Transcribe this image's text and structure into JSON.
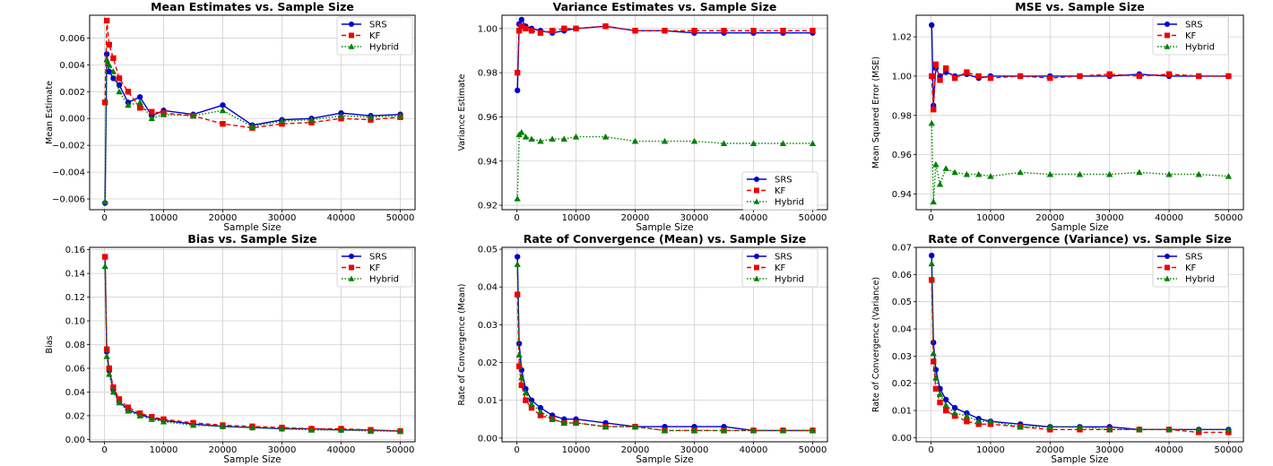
{
  "legend_labels": [
    "SRS",
    "KF",
    "Hybrid"
  ],
  "colors": {
    "SRS": "#0000cc",
    "KF": "#ee0000",
    "Hybrid": "#008000",
    "grid": "#d0d0d0"
  },
  "chart_data": [
    {
      "type": "line",
      "title": "Mean Estimates vs. Sample Size",
      "xlabel": "Sample Size",
      "ylabel": "Mean Estimate",
      "xlim": [
        -2500,
        52500
      ],
      "ylim": [
        -0.0068,
        0.0077
      ],
      "xticks": [
        0,
        10000,
        20000,
        30000,
        40000,
        50000
      ],
      "xtick_labels": [
        "0",
        "10000",
        "20000",
        "30000",
        "40000",
        "50000"
      ],
      "yticks": [
        -0.006,
        -0.004,
        -0.002,
        0.0,
        0.002,
        0.004,
        0.006
      ],
      "ytick_labels": [
        "−0.006",
        "−0.004",
        "−0.002",
        "0.000",
        "0.002",
        "0.004",
        "0.006"
      ],
      "grid": true,
      "legend": "top-right",
      "series": [
        {
          "name": "SRS",
          "x": [
            100,
            400,
            800,
            1500,
            2500,
            4000,
            6000,
            8000,
            10000,
            15000,
            20000,
            25000,
            30000,
            35000,
            40000,
            45000,
            50000
          ],
          "y": [
            -0.0063,
            0.0048,
            0.0035,
            0.003,
            0.0025,
            0.0012,
            0.0016,
            0.0002,
            0.0006,
            0.0003,
            0.001,
            -0.0005,
            -0.0001,
            0.0,
            0.0004,
            0.0002,
            0.0003
          ]
        },
        {
          "name": "KF",
          "x": [
            100,
            400,
            800,
            1500,
            2500,
            4000,
            6000,
            8000,
            10000,
            15000,
            20000,
            25000,
            30000,
            35000,
            40000,
            45000,
            50000
          ],
          "y": [
            0.0012,
            0.0073,
            0.0055,
            0.0045,
            0.003,
            0.002,
            0.0008,
            0.0005,
            0.0004,
            0.0002,
            -0.0004,
            -0.0007,
            -0.0004,
            -0.0003,
            0.0,
            -0.0001,
            0.0001
          ]
        },
        {
          "name": "Hybrid",
          "x": [
            100,
            400,
            800,
            1500,
            2500,
            4000,
            6000,
            8000,
            10000,
            15000,
            20000,
            25000,
            30000,
            35000,
            40000,
            45000,
            50000
          ],
          "y": [
            -0.0062,
            0.0044,
            0.004,
            0.0035,
            0.002,
            0.001,
            0.0012,
            0.0,
            0.0003,
            0.0002,
            0.0006,
            -0.0006,
            -0.0002,
            -0.0001,
            0.0002,
            0.0001,
            0.0002
          ]
        }
      ]
    },
    {
      "type": "line",
      "title": "Variance Estimates vs. Sample Size",
      "xlabel": "Sample Size",
      "ylabel": "Variance Estimate",
      "xlim": [
        -2500,
        52500
      ],
      "ylim": [
        0.918,
        1.006
      ],
      "xticks": [
        0,
        10000,
        20000,
        30000,
        40000,
        50000
      ],
      "xtick_labels": [
        "0",
        "10000",
        "20000",
        "30000",
        "40000",
        "50000"
      ],
      "yticks": [
        0.92,
        0.94,
        0.96,
        0.98,
        1.0
      ],
      "ytick_labels": [
        "0.92",
        "0.94",
        "0.96",
        "0.98",
        "1.00"
      ],
      "grid": true,
      "legend": "lower-right",
      "series": [
        {
          "name": "SRS",
          "x": [
            100,
            400,
            800,
            1500,
            2500,
            4000,
            6000,
            8000,
            10000,
            15000,
            20000,
            25000,
            30000,
            35000,
            40000,
            45000,
            50000
          ],
          "y": [
            0.972,
            1.002,
            1.004,
            1.001,
            1.0,
            0.999,
            0.998,
            0.999,
            1.0,
            1.001,
            0.999,
            0.999,
            0.998,
            0.998,
            0.998,
            0.998,
            0.998
          ]
        },
        {
          "name": "KF",
          "x": [
            100,
            400,
            800,
            1500,
            2500,
            4000,
            6000,
            8000,
            10000,
            15000,
            20000,
            25000,
            30000,
            35000,
            40000,
            45000,
            50000
          ],
          "y": [
            0.98,
            0.999,
            1.001,
            1.0,
            0.999,
            0.998,
            0.999,
            1.0,
            1.0,
            1.001,
            0.999,
            0.999,
            0.999,
            0.999,
            0.999,
            0.999,
            0.999
          ]
        },
        {
          "name": "Hybrid",
          "x": [
            100,
            400,
            800,
            1500,
            2500,
            4000,
            6000,
            8000,
            10000,
            15000,
            20000,
            25000,
            30000,
            35000,
            40000,
            45000,
            50000
          ],
          "y": [
            0.923,
            0.952,
            0.953,
            0.951,
            0.95,
            0.949,
            0.95,
            0.95,
            0.951,
            0.951,
            0.949,
            0.949,
            0.949,
            0.948,
            0.948,
            0.948,
            0.948
          ]
        }
      ]
    },
    {
      "type": "line",
      "title": "MSE vs. Sample Size",
      "xlabel": "Sample Size",
      "ylabel": "Mean Squared Error (MSE)",
      "xlim": [
        -2500,
        52500
      ],
      "ylim": [
        0.932,
        1.031
      ],
      "xticks": [
        0,
        10000,
        20000,
        30000,
        40000,
        50000
      ],
      "xtick_labels": [
        "0",
        "10000",
        "20000",
        "30000",
        "40000",
        "50000"
      ],
      "yticks": [
        0.94,
        0.96,
        0.98,
        1.0,
        1.02
      ],
      "ytick_labels": [
        "0.94",
        "0.96",
        "0.98",
        "1.00",
        "1.02"
      ],
      "grid": true,
      "legend": "top-right",
      "series": [
        {
          "name": "SRS",
          "x": [
            100,
            400,
            800,
            1500,
            2500,
            4000,
            6000,
            8000,
            10000,
            15000,
            20000,
            25000,
            30000,
            35000,
            40000,
            45000,
            50000
          ],
          "y": [
            1.026,
            0.985,
            1.004,
            1.0,
            1.002,
            1.0,
            1.001,
            0.999,
            1.0,
            1.0,
            1.0,
            1.0,
            1.0,
            1.001,
            1.0,
            1.0,
            1.0
          ]
        },
        {
          "name": "KF",
          "x": [
            100,
            400,
            800,
            1500,
            2500,
            4000,
            6000,
            8000,
            10000,
            15000,
            20000,
            25000,
            30000,
            35000,
            40000,
            45000,
            50000
          ],
          "y": [
            1.0,
            0.983,
            1.006,
            0.998,
            1.004,
            0.999,
            1.002,
            1.0,
            0.999,
            1.0,
            0.999,
            1.0,
            1.001,
            1.0,
            1.001,
            1.0,
            1.0
          ]
        },
        {
          "name": "Hybrid",
          "x": [
            100,
            400,
            800,
            1500,
            2500,
            4000,
            6000,
            8000,
            10000,
            15000,
            20000,
            25000,
            30000,
            35000,
            40000,
            45000,
            50000
          ],
          "y": [
            0.976,
            0.936,
            0.955,
            0.945,
            0.953,
            0.951,
            0.95,
            0.95,
            0.949,
            0.951,
            0.95,
            0.95,
            0.95,
            0.951,
            0.95,
            0.95,
            0.949
          ]
        }
      ]
    },
    {
      "type": "line",
      "title": "Bias vs. Sample Size",
      "xlabel": "Sample Size",
      "ylabel": "Bias",
      "xlim": [
        -2500,
        52500
      ],
      "ylim": [
        -0.002,
        0.162
      ],
      "xticks": [
        0,
        10000,
        20000,
        30000,
        40000,
        50000
      ],
      "xtick_labels": [
        "0",
        "10000",
        "20000",
        "30000",
        "40000",
        "50000"
      ],
      "yticks": [
        0.0,
        0.02,
        0.04,
        0.06,
        0.08,
        0.1,
        0.12,
        0.14,
        0.16
      ],
      "ytick_labels": [
        "0.00",
        "0.02",
        "0.04",
        "0.06",
        "0.08",
        "0.10",
        "0.12",
        "0.14",
        "0.16"
      ],
      "grid": true,
      "legend": "top-right",
      "series": [
        {
          "name": "SRS",
          "x": [
            100,
            400,
            800,
            1500,
            2500,
            4000,
            6000,
            8000,
            10000,
            15000,
            20000,
            25000,
            30000,
            35000,
            40000,
            45000,
            50000
          ],
          "y": [
            0.154,
            0.074,
            0.058,
            0.042,
            0.032,
            0.025,
            0.021,
            0.018,
            0.016,
            0.013,
            0.011,
            0.01,
            0.009,
            0.009,
            0.008,
            0.008,
            0.007
          ]
        },
        {
          "name": "KF",
          "x": [
            100,
            400,
            800,
            1500,
            2500,
            4000,
            6000,
            8000,
            10000,
            15000,
            20000,
            25000,
            30000,
            35000,
            40000,
            45000,
            50000
          ],
          "y": [
            0.154,
            0.076,
            0.06,
            0.044,
            0.034,
            0.027,
            0.022,
            0.019,
            0.017,
            0.014,
            0.012,
            0.011,
            0.01,
            0.009,
            0.009,
            0.008,
            0.007
          ]
        },
        {
          "name": "Hybrid",
          "x": [
            100,
            400,
            800,
            1500,
            2500,
            4000,
            6000,
            8000,
            10000,
            15000,
            20000,
            25000,
            30000,
            35000,
            40000,
            45000,
            50000
          ],
          "y": [
            0.146,
            0.07,
            0.055,
            0.04,
            0.031,
            0.024,
            0.02,
            0.017,
            0.015,
            0.012,
            0.011,
            0.01,
            0.009,
            0.008,
            0.008,
            0.007,
            0.007
          ]
        }
      ]
    },
    {
      "type": "line",
      "title": "Rate of Convergence (Mean) vs. Sample Size",
      "xlabel": "Sample Size",
      "ylabel": "Rate of Convergence (Mean)",
      "xlim": [
        -2500,
        52500
      ],
      "ylim": [
        -0.001,
        0.0505
      ],
      "xticks": [
        0,
        10000,
        20000,
        30000,
        40000,
        50000
      ],
      "xtick_labels": [
        "0",
        "10000",
        "20000",
        "30000",
        "40000",
        "50000"
      ],
      "yticks": [
        0.0,
        0.01,
        0.02,
        0.03,
        0.04,
        0.05
      ],
      "ytick_labels": [
        "0.00",
        "0.01",
        "0.02",
        "0.03",
        "0.04",
        "0.05"
      ],
      "grid": true,
      "legend": "top-right",
      "series": [
        {
          "name": "SRS",
          "x": [
            100,
            400,
            800,
            1500,
            2500,
            4000,
            6000,
            8000,
            10000,
            15000,
            20000,
            25000,
            30000,
            35000,
            40000,
            45000,
            50000
          ],
          "y": [
            0.048,
            0.025,
            0.018,
            0.013,
            0.01,
            0.008,
            0.006,
            0.005,
            0.005,
            0.004,
            0.003,
            0.003,
            0.003,
            0.003,
            0.002,
            0.002,
            0.002
          ]
        },
        {
          "name": "KF",
          "x": [
            100,
            400,
            800,
            1500,
            2500,
            4000,
            6000,
            8000,
            10000,
            15000,
            20000,
            25000,
            30000,
            35000,
            40000,
            45000,
            50000
          ],
          "y": [
            0.038,
            0.019,
            0.014,
            0.01,
            0.008,
            0.006,
            0.005,
            0.004,
            0.004,
            0.003,
            0.003,
            0.002,
            0.002,
            0.002,
            0.002,
            0.002,
            0.002
          ]
        },
        {
          "name": "Hybrid",
          "x": [
            100,
            400,
            800,
            1500,
            2500,
            4000,
            6000,
            8000,
            10000,
            15000,
            20000,
            25000,
            30000,
            35000,
            40000,
            45000,
            50000
          ],
          "y": [
            0.046,
            0.022,
            0.016,
            0.012,
            0.009,
            0.007,
            0.005,
            0.004,
            0.004,
            0.003,
            0.003,
            0.002,
            0.002,
            0.002,
            0.002,
            0.002,
            0.002
          ]
        }
      ]
    },
    {
      "type": "line",
      "title": "Rate of Convergence (Variance) vs. Sample Size",
      "xlabel": "Sample Size",
      "ylabel": "Rate of Convergence (Variance)",
      "xlim": [
        -2500,
        52500
      ],
      "ylim": [
        -0.0015,
        0.07
      ],
      "xticks": [
        0,
        10000,
        20000,
        30000,
        40000,
        50000
      ],
      "xtick_labels": [
        "0",
        "10000",
        "20000",
        "30000",
        "40000",
        "50000"
      ],
      "yticks": [
        0.0,
        0.01,
        0.02,
        0.03,
        0.04,
        0.05,
        0.06,
        0.07
      ],
      "ytick_labels": [
        "0.00",
        "0.01",
        "0.02",
        "0.03",
        "0.04",
        "0.05",
        "0.06",
        "0.07"
      ],
      "grid": true,
      "legend": "top-right",
      "series": [
        {
          "name": "SRS",
          "x": [
            100,
            400,
            800,
            1500,
            2500,
            4000,
            6000,
            8000,
            10000,
            15000,
            20000,
            25000,
            30000,
            35000,
            40000,
            45000,
            50000
          ],
          "y": [
            0.067,
            0.035,
            0.025,
            0.018,
            0.014,
            0.011,
            0.009,
            0.007,
            0.006,
            0.005,
            0.004,
            0.004,
            0.004,
            0.003,
            0.003,
            0.003,
            0.003
          ]
        },
        {
          "name": "KF",
          "x": [
            100,
            400,
            800,
            1500,
            2500,
            4000,
            6000,
            8000,
            10000,
            15000,
            20000,
            25000,
            30000,
            35000,
            40000,
            45000,
            50000
          ],
          "y": [
            0.058,
            0.028,
            0.018,
            0.013,
            0.01,
            0.008,
            0.006,
            0.005,
            0.005,
            0.004,
            0.003,
            0.003,
            0.003,
            0.003,
            0.003,
            0.002,
            0.002
          ]
        },
        {
          "name": "Hybrid",
          "x": [
            100,
            400,
            800,
            1500,
            2500,
            4000,
            6000,
            8000,
            10000,
            15000,
            20000,
            25000,
            30000,
            35000,
            40000,
            45000,
            50000
          ],
          "y": [
            0.064,
            0.031,
            0.022,
            0.016,
            0.012,
            0.009,
            0.008,
            0.006,
            0.006,
            0.004,
            0.004,
            0.004,
            0.003,
            0.003,
            0.003,
            0.003,
            0.003
          ]
        }
      ]
    }
  ]
}
